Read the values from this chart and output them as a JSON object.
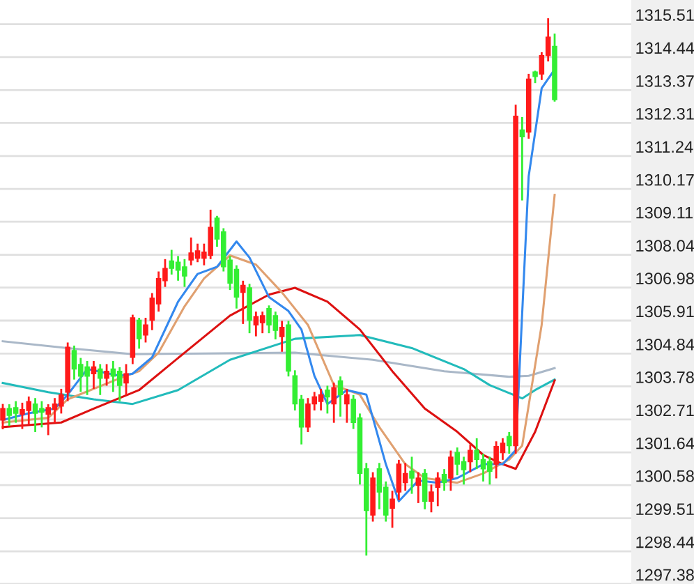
{
  "chart_data": {
    "type": "candlestick",
    "categories": [
      null,
      null,
      null,
      null,
      null,
      null,
      null,
      null,
      null,
      null,
      null,
      null,
      null,
      null,
      null,
      null,
      null,
      null,
      null,
      null,
      null,
      null,
      null,
      null,
      null,
      null,
      null,
      null,
      null,
      null,
      null,
      null,
      null,
      null,
      null,
      null,
      null,
      null,
      null,
      null,
      null,
      null,
      null,
      null,
      null,
      null,
      null,
      null,
      null,
      null,
      null,
      null,
      null,
      null,
      null,
      null,
      null,
      null,
      null,
      null,
      null,
      null,
      null,
      null,
      null,
      null,
      null,
      null,
      null,
      null,
      null,
      null,
      null,
      null,
      null,
      null,
      null,
      null,
      null,
      null,
      null,
      null,
      null,
      null,
      null,
      null
    ],
    "ohlc": [
      [
        1302.69,
        1303.21,
        1302.39,
        1303.06
      ],
      [
        1303.06,
        1303.2,
        1302.5,
        1302.84
      ],
      [
        1303.09,
        1303.3,
        1302.6,
        1302.91
      ],
      [
        1302.88,
        1303.25,
        1302.4,
        1303.03
      ],
      [
        1303.0,
        1303.45,
        1302.55,
        1303.29
      ],
      [
        1303.21,
        1303.4,
        1302.3,
        1302.91
      ],
      [
        1303.06,
        1303.3,
        1302.45,
        1302.94
      ],
      [
        1302.88,
        1303.2,
        1302.2,
        1303.09
      ],
      [
        1303.03,
        1303.4,
        1302.6,
        1303.21
      ],
      [
        1303.14,
        1303.7,
        1302.9,
        1303.51
      ],
      [
        1303.59,
        1305.2,
        1303.3,
        1305.05
      ],
      [
        1304.94,
        1305.1,
        1304.0,
        1304.34
      ],
      [
        1304.49,
        1304.7,
        1303.6,
        1304.11
      ],
      [
        1304.41,
        1304.6,
        1303.5,
        1304.11
      ],
      [
        1304.19,
        1304.6,
        1303.7,
        1304.41
      ],
      [
        1304.34,
        1304.5,
        1303.5,
        1304.04
      ],
      [
        1304.04,
        1304.5,
        1303.8,
        1304.27
      ],
      [
        1304.34,
        1304.6,
        1303.6,
        1304.11
      ],
      [
        1304.27,
        1304.4,
        1303.3,
        1303.81
      ],
      [
        1303.89,
        1304.5,
        1303.5,
        1304.19
      ],
      [
        1304.72,
        1306.1,
        1304.5,
        1306.0
      ],
      [
        1305.92,
        1306.0,
        1305.0,
        1305.32
      ],
      [
        1305.44,
        1306.0,
        1305.2,
        1305.77
      ],
      [
        1305.92,
        1306.8,
        1305.6,
        1306.64
      ],
      [
        1306.45,
        1307.5,
        1306.2,
        1307.27
      ],
      [
        1307.2,
        1307.9,
        1307.0,
        1307.6
      ],
      [
        1307.84,
        1308.2,
        1307.4,
        1307.6
      ],
      [
        1307.8,
        1308.0,
        1307.2,
        1307.54
      ],
      [
        1307.65,
        1307.9,
        1307.0,
        1307.35
      ],
      [
        1307.87,
        1308.6,
        1307.7,
        1308.1
      ],
      [
        1307.93,
        1308.4,
        1307.8,
        1308.17
      ],
      [
        1307.93,
        1308.4,
        1307.7,
        1308.13
      ],
      [
        1308.02,
        1309.5,
        1307.9,
        1308.93
      ],
      [
        1309.23,
        1309.3,
        1308.3,
        1308.55
      ],
      [
        1308.78,
        1308.9,
        1307.5,
        1307.65
      ],
      [
        1307.87,
        1308.0,
        1306.9,
        1307.12
      ],
      [
        1307.57,
        1307.7,
        1306.3,
        1306.67
      ],
      [
        1306.82,
        1307.2,
        1305.8,
        1307.05
      ],
      [
        1306.97,
        1307.1,
        1305.5,
        1305.92
      ],
      [
        1305.77,
        1306.2,
        1305.4,
        1306.04
      ],
      [
        1305.84,
        1306.2,
        1305.5,
        1306.07
      ],
      [
        1306.3,
        1306.4,
        1305.5,
        1305.77
      ],
      [
        1306.07,
        1306.2,
        1305.3,
        1305.59
      ],
      [
        1305.39,
        1305.9,
        1304.9,
        1305.69
      ],
      [
        1305.77,
        1305.9,
        1304.1,
        1304.27
      ],
      [
        1304.12,
        1304.3,
        1303.0,
        1303.21
      ],
      [
        1303.36,
        1303.5,
        1301.9,
        1302.46
      ],
      [
        1302.46,
        1303.4,
        1302.3,
        1303.21
      ],
      [
        1303.21,
        1303.6,
        1303.0,
        1303.44
      ],
      [
        1303.29,
        1303.7,
        1303.0,
        1303.51
      ],
      [
        1303.66,
        1303.8,
        1302.9,
        1303.44
      ],
      [
        1303.21,
        1303.9,
        1302.6,
        1303.74
      ],
      [
        1303.96,
        1304.1,
        1302.8,
        1303.51
      ],
      [
        1303.21,
        1303.7,
        1302.6,
        1303.51
      ],
      [
        1303.36,
        1303.5,
        1302.4,
        1302.61
      ],
      [
        1302.76,
        1302.9,
        1300.6,
        1300.96
      ],
      [
        1301.11,
        1301.3,
        1298.3,
        1299.76
      ],
      [
        1299.61,
        1301.0,
        1299.4,
        1300.81
      ],
      [
        1301.11,
        1301.3,
        1299.8,
        1300.36
      ],
      [
        1300.51,
        1300.7,
        1299.4,
        1299.61
      ],
      [
        1299.83,
        1300.4,
        1299.2,
        1300.13
      ],
      [
        1300.36,
        1301.4,
        1300.1,
        1301.26
      ],
      [
        1300.66,
        1301.3,
        1300.4,
        1300.96
      ],
      [
        1301.03,
        1301.5,
        1300.3,
        1300.81
      ],
      [
        1300.58,
        1301.0,
        1300.0,
        1300.81
      ],
      [
        1300.96,
        1301.1,
        1299.8,
        1300.06
      ],
      [
        1300.06,
        1300.6,
        1299.7,
        1300.36
      ],
      [
        1300.51,
        1301.0,
        1299.9,
        1300.81
      ],
      [
        1300.93,
        1301.1,
        1300.4,
        1300.66
      ],
      [
        1300.81,
        1301.7,
        1300.4,
        1301.49
      ],
      [
        1301.64,
        1301.8,
        1300.9,
        1301.26
      ],
      [
        1301.34,
        1301.5,
        1300.6,
        1301.08
      ],
      [
        1301.34,
        1301.9,
        1301.0,
        1301.71
      ],
      [
        1301.71,
        1302.1,
        1301.1,
        1301.41
      ],
      [
        1301.41,
        1301.6,
        1300.7,
        1301.11
      ],
      [
        1301.34,
        1301.5,
        1300.6,
        1301.03
      ],
      [
        1301.26,
        1302.0,
        1300.8,
        1301.83
      ],
      [
        1301.63,
        1302.1,
        1301.4,
        1301.94
      ],
      [
        1302.16,
        1302.3,
        1301.6,
        1301.86
      ],
      [
        1301.86,
        1312.9,
        1301.6,
        1312.53
      ],
      [
        1312.08,
        1312.5,
        1309.8,
        1311.86
      ],
      [
        1312.01,
        1313.9,
        1311.8,
        1313.73
      ],
      [
        1313.96,
        1314.0,
        1313.6,
        1313.81
      ],
      [
        1313.89,
        1314.6,
        1313.7,
        1314.49
      ],
      [
        1314.49,
        1315.7,
        1314.3,
        1315.09
      ],
      [
        1314.79,
        1315.2,
        1313.0,
        1313.06
      ]
    ],
    "colors": [
      "#ff1a1a",
      "#33ee33",
      "#33ee33",
      "#ff1a1a",
      "#ff1a1a",
      "#33ee33",
      "#33ee33",
      "#ff1a1a",
      "#ff1a1a",
      "#ff1a1a",
      "#ff1a1a",
      "#33ee33",
      "#33ee33",
      "#33ee33",
      "#ff1a1a",
      "#33ee33",
      "#ff1a1a",
      "#33ee33",
      "#33ee33",
      "#ff1a1a",
      "#ff1a1a",
      "#33ee33",
      "#ff1a1a",
      "#ff1a1a",
      "#ff1a1a",
      "#ff1a1a",
      "#33ee33",
      "#33ee33",
      "#33ee33",
      "#ff1a1a",
      "#ff1a1a",
      "#ff1a1a",
      "#ff1a1a",
      "#33ee33",
      "#33ee33",
      "#33ee33",
      "#33ee33",
      "#ff1a1a",
      "#33ee33",
      "#ff1a1a",
      "#ff1a1a",
      "#33ee33",
      "#33ee33",
      "#ff1a1a",
      "#33ee33",
      "#33ee33",
      "#33ee33",
      "#ff1a1a",
      "#ff1a1a",
      "#ff1a1a",
      "#33ee33",
      "#ff1a1a",
      "#33ee33",
      "#ff1a1a",
      "#33ee33",
      "#33ee33",
      "#33ee33",
      "#ff1a1a",
      "#33ee33",
      "#33ee33",
      "#ff1a1a",
      "#ff1a1a",
      "#ff1a1a",
      "#33ee33",
      "#ff1a1a",
      "#33ee33",
      "#ff1a1a",
      "#ff1a1a",
      "#33ee33",
      "#ff1a1a",
      "#33ee33",
      "#33ee33",
      "#ff1a1a",
      "#33ee33",
      "#33ee33",
      "#33ee33",
      "#ff1a1a",
      "#ff1a1a",
      "#33ee33",
      "#ff1a1a",
      "#33ee33",
      "#ff1a1a",
      "#33ee33",
      "#ff1a1a",
      "#ff1a1a",
      "#33ee33"
    ],
    "series": [
      {
        "type": "line",
        "color": "#aab8c8",
        "values": [
          1305.24,
          null,
          null,
          null,
          null,
          null,
          null,
          null,
          null,
          null,
          1305.02,
          null,
          null,
          null,
          null,
          null,
          null,
          null,
          null,
          null,
          1304.82,
          null,
          null,
          null,
          null,
          null,
          null,
          null,
          1304.84,
          null,
          null,
          null,
          null,
          null,
          null,
          null,
          null,
          null,
          null,
          null,
          null,
          null,
          null,
          null,
          null,
          1304.87,
          null,
          null,
          null,
          null,
          null,
          null,
          null,
          null,
          null,
          null,
          null,
          1304.64,
          null,
          null,
          null,
          null,
          null,
          null,
          null,
          null,
          null,
          null,
          1304.27,
          null,
          null,
          null,
          null,
          null,
          null,
          null,
          null,
          null,
          1304.09,
          null,
          null,
          1304.12,
          null,
          null,
          null,
          1304.37
        ]
      },
      {
        "type": "line",
        "color": "#22bbbb",
        "values": [
          1303.89,
          null,
          null,
          null,
          null,
          null,
          null,
          1303.59,
          null,
          null,
          null,
          null,
          null,
          null,
          1303.36,
          null,
          null,
          null,
          null,
          null,
          1303.21,
          null,
          null,
          null,
          null,
          null,
          null,
          1303.66,
          null,
          null,
          null,
          null,
          null,
          null,
          null,
          1304.64,
          null,
          null,
          null,
          null,
          null,
          null,
          null,
          null,
          null,
          1305.32,
          null,
          null,
          null,
          null,
          null,
          null,
          null,
          null,
          null,
          1305.44,
          null,
          null,
          null,
          null,
          null,
          null,
          null,
          1305.02,
          null,
          null,
          null,
          null,
          null,
          null,
          null,
          1304.34,
          null,
          null,
          null,
          1303.82,
          null,
          null,
          null,
          null,
          1303.39,
          null,
          1303.66,
          null,
          null,
          1304.0
        ]
      },
      {
        "type": "line",
        "color": "#dd1111",
        "values": [
          1302.46,
          null,
          null,
          null,
          null,
          null,
          null,
          null,
          null,
          1302.61,
          null,
          null,
          null,
          null,
          1303.06,
          null,
          null,
          null,
          null,
          null,
          null,
          1303.66,
          null,
          null,
          null,
          null,
          null,
          null,
          1304.87,
          null,
          null,
          null,
          null,
          null,
          null,
          1306.07,
          null,
          null,
          null,
          null,
          null,
          1306.75,
          null,
          null,
          null,
          1306.97,
          null,
          null,
          null,
          null,
          1306.52,
          null,
          null,
          null,
          null,
          1305.62,
          null,
          null,
          null,
          null,
          1304.27,
          null,
          null,
          null,
          null,
          1303.06,
          null,
          null,
          null,
          null,
          1302.31,
          null,
          null,
          null,
          1301.56,
          null,
          null,
          1301.26,
          null,
          1301.11,
          null,
          null,
          1302.31,
          null,
          null,
          1303.97
        ]
      },
      {
        "type": "line",
        "color": "#e0a070",
        "values": [
          1302.61,
          null,
          null,
          null,
          null,
          null,
          null,
          1302.76,
          null,
          null,
          1303.36,
          null,
          null,
          null,
          null,
          null,
          null,
          null,
          1304.04,
          null,
          null,
          1304.27,
          null,
          null,
          1304.87,
          null,
          null,
          null,
          1306.37,
          null,
          null,
          1307.27,
          null,
          null,
          null,
          1308.02,
          null,
          null,
          null,
          1307.72,
          null,
          null,
          null,
          1306.82,
          null,
          null,
          null,
          1305.77,
          null,
          null,
          null,
          1303.82,
          null,
          null,
          null,
          1303.51,
          null,
          null,
          1302.46,
          null,
          null,
          null,
          1301.26,
          null,
          null,
          1300.81,
          null,
          null,
          null,
          null,
          1300.66,
          null,
          null,
          null,
          1300.96,
          null,
          null,
          null,
          1301.41,
          null,
          1301.86,
          null,
          null,
          1305.77,
          null,
          1309.98
        ]
      },
      {
        "type": "line",
        "color": "#3388ee",
        "values": [
          1302.69,
          null,
          null,
          null,
          1302.91,
          null,
          null,
          null,
          1303.06,
          null,
          1303.51,
          null,
          null,
          1304.34,
          null,
          null,
          null,
          null,
          1304.12,
          null,
          1304.19,
          null,
          null,
          1304.72,
          null,
          null,
          null,
          1306.52,
          null,
          null,
          1307.42,
          null,
          null,
          1307.65,
          null,
          null,
          1308.47,
          null,
          1307.95,
          null,
          null,
          1306.67,
          null,
          null,
          1306.22,
          null,
          1305.62,
          null,
          1304.12,
          null,
          1303.21,
          null,
          null,
          1303.66,
          null,
          null,
          1303.51,
          null,
          null,
          1301.26,
          null,
          1300.06,
          null,
          null,
          1300.73,
          null,
          null,
          1300.66,
          null,
          null,
          1300.81,
          null,
          null,
          null,
          1301.26,
          null,
          null,
          1301.26,
          null,
          1301.71,
          null,
          1310.58,
          null,
          1313.43,
          null,
          1314.04
        ]
      }
    ],
    "ylim": [
      1297.38,
      1316.29
    ],
    "yticks": [
      1297.38,
      1298.44,
      1299.51,
      1300.58,
      1301.64,
      1302.71,
      1303.78,
      1304.84,
      1305.91,
      1306.98,
      1308.04,
      1309.11,
      1310.17,
      1311.24,
      1312.31,
      1313.37,
      1314.44,
      1315.51
    ],
    "grid": "y",
    "tick_labels": "y"
  }
}
